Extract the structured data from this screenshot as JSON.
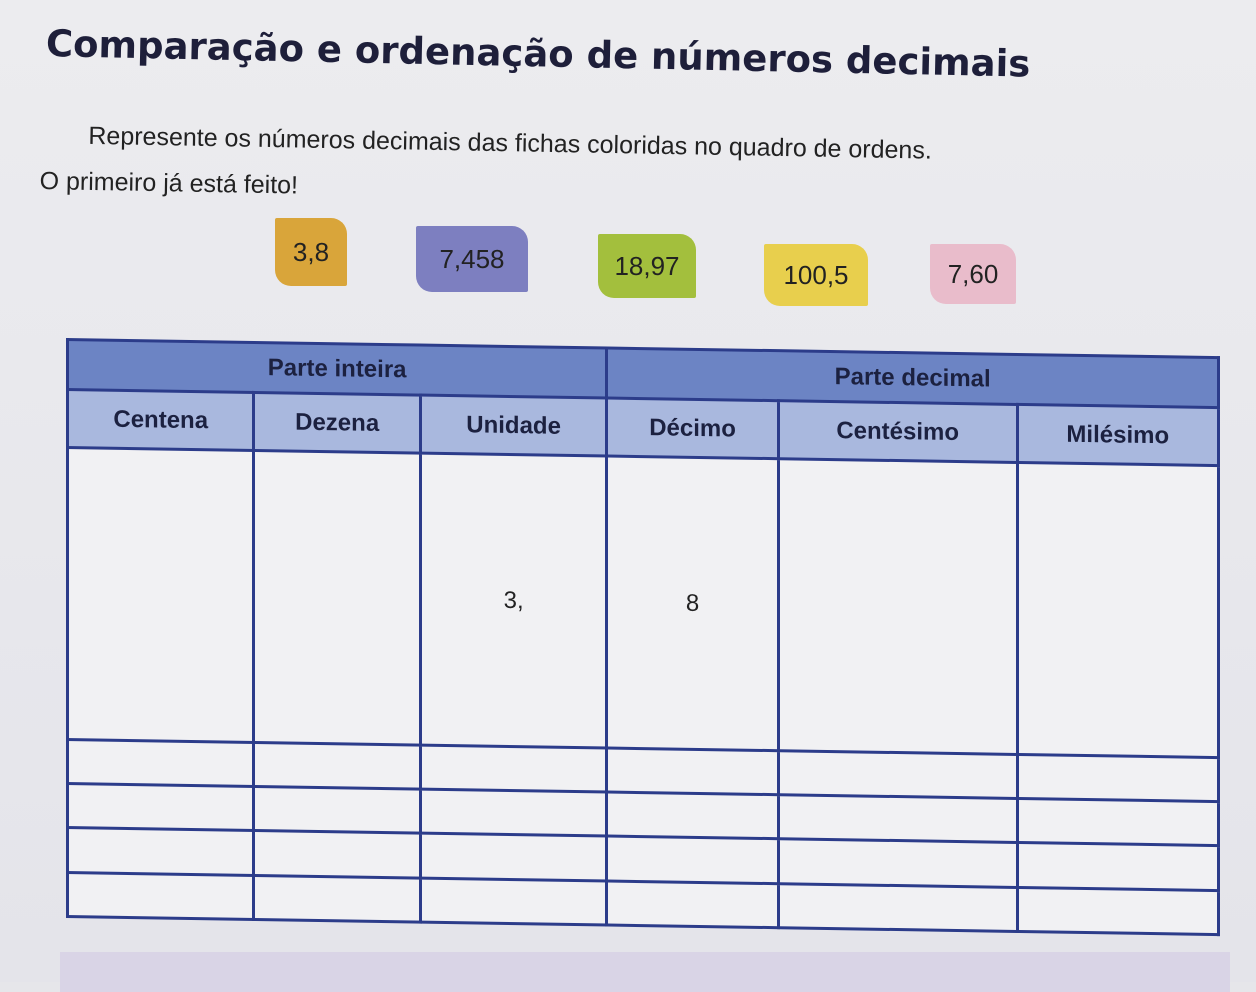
{
  "title": "Comparação e ordenação de números decimais",
  "instructions": [
    "Represente os números decimais das fichas coloridas no quadro de ordens.",
    "O primeiro já está feito!"
  ],
  "cards": [
    {
      "value": "3,8",
      "color": "#d9a53a"
    },
    {
      "value": "7,458",
      "color": "#7d7fc0"
    },
    {
      "value": "18,97",
      "color": "#a3bf3d"
    },
    {
      "value": "100,5",
      "color": "#e8cf4d"
    },
    {
      "value": "7,60",
      "color": "#e9bccb"
    }
  ],
  "table": {
    "groups": [
      "Parte inteira",
      "Parte decimal"
    ],
    "columns": [
      "Centena",
      "Dezena",
      "Unidade",
      "Décimo",
      "Centésimo",
      "Milésimo"
    ],
    "rows": [
      [
        "",
        "",
        "3,",
        "8",
        "",
        ""
      ],
      [
        "",
        "",
        "",
        "",
        "",
        ""
      ],
      [
        "",
        "",
        "",
        "",
        "",
        ""
      ],
      [
        "",
        "",
        "",
        "",
        "",
        ""
      ],
      [
        "",
        "",
        "",
        "",
        "",
        ""
      ]
    ]
  }
}
